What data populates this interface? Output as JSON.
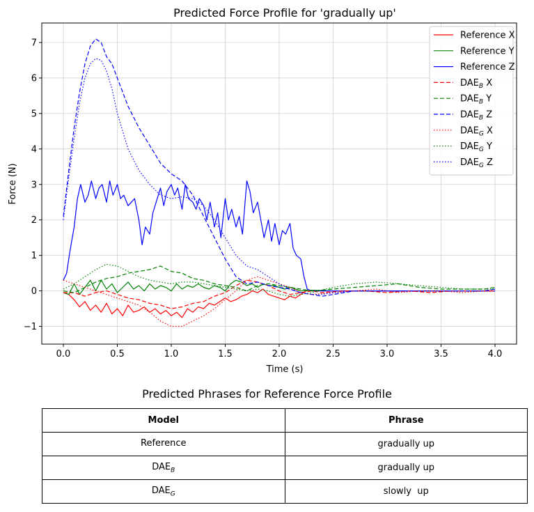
{
  "chart_data": {
    "type": "line",
    "title": "Predicted Force Profile for 'gradually up'",
    "xlabel": "Time (s)",
    "ylabel": "Force (N)",
    "xlim": [
      -0.2,
      4.2
    ],
    "ylim": [
      -1.5,
      7.55
    ],
    "xticks": [
      0.0,
      0.5,
      1.0,
      1.5,
      2.0,
      2.5,
      3.0,
      3.5,
      4.0
    ],
    "xtick_labels": [
      "0.0",
      "0.5",
      "1.0",
      "1.5",
      "2.0",
      "2.5",
      "3.0",
      "3.5",
      "4.0"
    ],
    "yticks": [
      -1,
      0,
      1,
      2,
      3,
      4,
      5,
      6,
      7
    ],
    "ytick_labels": [
      "−1",
      "0",
      "1",
      "2",
      "3",
      "4",
      "5",
      "6",
      "7"
    ],
    "grid": true,
    "legend_position": "top-right",
    "series": [
      {
        "name": "Reference X",
        "label_main": "Reference X",
        "label_sub": "",
        "label_rest": "",
        "color": "#ff0000",
        "dash": "solid",
        "x": [
          0.0,
          0.05,
          0.1,
          0.15,
          0.2,
          0.25,
          0.3,
          0.35,
          0.4,
          0.45,
          0.5,
          0.55,
          0.6,
          0.65,
          0.7,
          0.75,
          0.8,
          0.85,
          0.9,
          0.95,
          1.0,
          1.05,
          1.1,
          1.15,
          1.2,
          1.25,
          1.3,
          1.35,
          1.4,
          1.45,
          1.5,
          1.55,
          1.6,
          1.65,
          1.7,
          1.75,
          1.8,
          1.85,
          1.9,
          1.95,
          2.0,
          2.05,
          2.1,
          2.15,
          2.2,
          2.25,
          2.3,
          2.4,
          2.6,
          2.8,
          3.0,
          3.2,
          3.4,
          3.6,
          3.8,
          4.0
        ],
        "y": [
          -0.05,
          -0.1,
          -0.25,
          -0.45,
          -0.3,
          -0.55,
          -0.4,
          -0.6,
          -0.35,
          -0.65,
          -0.5,
          -0.7,
          -0.4,
          -0.6,
          -0.55,
          -0.45,
          -0.6,
          -0.5,
          -0.65,
          -0.55,
          -0.7,
          -0.6,
          -0.75,
          -0.5,
          -0.6,
          -0.45,
          -0.5,
          -0.35,
          -0.4,
          -0.3,
          -0.2,
          -0.3,
          -0.25,
          -0.15,
          -0.1,
          0.0,
          -0.05,
          0.05,
          -0.1,
          -0.15,
          -0.2,
          -0.25,
          -0.15,
          -0.2,
          -0.1,
          0.0,
          0.02,
          0.0,
          0.0,
          0.0,
          0.0,
          0.0,
          0.0,
          0.0,
          0.0,
          0.0
        ]
      },
      {
        "name": "Reference Y",
        "label_main": "Reference Y",
        "label_sub": "",
        "label_rest": "",
        "color": "#008000",
        "dash": "solid",
        "x": [
          0.0,
          0.05,
          0.1,
          0.15,
          0.2,
          0.25,
          0.3,
          0.35,
          0.4,
          0.45,
          0.5,
          0.55,
          0.6,
          0.65,
          0.7,
          0.75,
          0.8,
          0.85,
          0.9,
          0.95,
          1.0,
          1.05,
          1.1,
          1.15,
          1.2,
          1.25,
          1.3,
          1.35,
          1.4,
          1.45,
          1.5,
          1.55,
          1.6,
          1.65,
          1.7,
          1.75,
          1.8,
          1.85,
          1.9,
          1.95,
          2.0,
          2.05,
          2.1,
          2.15,
          2.2,
          2.3,
          2.5,
          2.7,
          2.9,
          3.1,
          3.3,
          3.5,
          3.7,
          3.9,
          4.0
        ],
        "y": [
          -0.05,
          -0.1,
          0.2,
          -0.1,
          0.1,
          0.3,
          0.0,
          0.3,
          0.05,
          0.2,
          -0.05,
          0.1,
          0.25,
          0.05,
          0.15,
          0.0,
          0.2,
          0.05,
          0.15,
          0.1,
          0.0,
          0.2,
          0.05,
          0.15,
          0.1,
          0.2,
          0.1,
          0.05,
          0.15,
          0.1,
          0.0,
          0.2,
          0.3,
          0.25,
          0.15,
          0.2,
          0.1,
          0.2,
          0.15,
          0.15,
          0.1,
          0.05,
          0.1,
          0.05,
          0.0,
          0.02,
          0.0,
          0.0,
          0.0,
          0.0,
          0.0,
          0.0,
          0.0,
          0.0,
          0.0
        ]
      },
      {
        "name": "Reference Z",
        "label_main": "Reference Z",
        "label_sub": "",
        "label_rest": "",
        "color": "#0000ff",
        "dash": "solid",
        "x": [
          0.0,
          0.03,
          0.06,
          0.1,
          0.13,
          0.16,
          0.2,
          0.23,
          0.26,
          0.3,
          0.33,
          0.36,
          0.4,
          0.43,
          0.46,
          0.5,
          0.53,
          0.56,
          0.6,
          0.63,
          0.66,
          0.7,
          0.73,
          0.76,
          0.8,
          0.83,
          0.86,
          0.9,
          0.93,
          0.96,
          1.0,
          1.03,
          1.06,
          1.1,
          1.13,
          1.16,
          1.2,
          1.23,
          1.26,
          1.3,
          1.33,
          1.36,
          1.4,
          1.43,
          1.46,
          1.5,
          1.53,
          1.56,
          1.6,
          1.63,
          1.66,
          1.7,
          1.73,
          1.76,
          1.8,
          1.83,
          1.86,
          1.9,
          1.93,
          1.96,
          2.0,
          2.03,
          2.06,
          2.1,
          2.13,
          2.16,
          2.2,
          2.23,
          2.26,
          2.3,
          2.5,
          2.7,
          2.9,
          3.1,
          3.3,
          3.5,
          3.7,
          3.9,
          4.0
        ],
        "y": [
          0.3,
          0.5,
          1.1,
          1.8,
          2.6,
          3.0,
          2.5,
          2.7,
          3.1,
          2.6,
          2.9,
          3.0,
          2.5,
          3.1,
          2.7,
          3.0,
          2.6,
          2.7,
          2.4,
          2.5,
          2.6,
          2.0,
          1.3,
          1.8,
          1.6,
          2.2,
          2.5,
          2.9,
          2.4,
          2.8,
          3.0,
          2.7,
          2.9,
          2.3,
          3.0,
          2.6,
          2.5,
          2.3,
          2.6,
          2.4,
          2.0,
          2.5,
          1.8,
          2.2,
          1.5,
          2.6,
          2.0,
          2.3,
          1.8,
          2.1,
          1.6,
          3.1,
          2.8,
          2.2,
          2.5,
          2.0,
          1.5,
          2.0,
          1.4,
          1.9,
          1.3,
          1.7,
          1.6,
          1.9,
          1.2,
          1.0,
          0.9,
          0.4,
          0.05,
          0.0,
          0.0,
          0.0,
          0.0,
          0.0,
          0.0,
          0.0,
          0.0,
          0.0,
          0.0
        ]
      },
      {
        "name": "DAE_B X",
        "label_main": "DAE",
        "label_sub": "B",
        "label_rest": " X",
        "color": "#ff0000",
        "dash": "6,3",
        "x": [
          0.0,
          0.1,
          0.2,
          0.3,
          0.4,
          0.5,
          0.6,
          0.7,
          0.8,
          0.9,
          1.0,
          1.1,
          1.2,
          1.3,
          1.4,
          1.5,
          1.6,
          1.7,
          1.8,
          1.9,
          2.0,
          2.1,
          2.2,
          2.3,
          2.4,
          2.6,
          2.8,
          3.0,
          3.2,
          3.4,
          3.6,
          3.8,
          4.0
        ],
        "y": [
          -0.05,
          -0.05,
          -0.15,
          -0.05,
          0.0,
          -0.1,
          -0.2,
          -0.25,
          -0.35,
          -0.4,
          -0.5,
          -0.45,
          -0.35,
          -0.3,
          -0.15,
          -0.05,
          0.15,
          0.3,
          0.25,
          0.15,
          0.0,
          -0.1,
          -0.05,
          0.0,
          -0.05,
          0.0,
          0.0,
          -0.05,
          0.0,
          -0.05,
          0.0,
          0.0,
          0.0
        ]
      },
      {
        "name": "DAE_B Y",
        "label_main": "DAE",
        "label_sub": "B",
        "label_rest": " Y",
        "color": "#008000",
        "dash": "6,3",
        "x": [
          0.0,
          0.1,
          0.2,
          0.3,
          0.4,
          0.5,
          0.6,
          0.7,
          0.8,
          0.9,
          1.0,
          1.1,
          1.2,
          1.3,
          1.4,
          1.5,
          1.6,
          1.7,
          1.8,
          1.9,
          2.0,
          2.1,
          2.2,
          2.3,
          2.5,
          2.7,
          2.9,
          3.1,
          3.3,
          3.5,
          3.7,
          3.9,
          4.0
        ],
        "y": [
          0.0,
          -0.05,
          0.1,
          0.25,
          0.35,
          0.4,
          0.5,
          0.55,
          0.6,
          0.7,
          0.55,
          0.5,
          0.35,
          0.3,
          0.2,
          0.15,
          0.1,
          0.0,
          0.15,
          0.2,
          0.15,
          0.1,
          0.05,
          0.0,
          0.05,
          0.1,
          0.15,
          0.2,
          0.1,
          0.05,
          0.05,
          0.05,
          0.1
        ]
      },
      {
        "name": "DAE_B Z",
        "label_main": "DAE",
        "label_sub": "B",
        "label_rest": " Z",
        "color": "#0000ff",
        "dash": "6,3",
        "x": [
          0.0,
          0.05,
          0.1,
          0.15,
          0.2,
          0.25,
          0.3,
          0.35,
          0.4,
          0.45,
          0.5,
          0.6,
          0.7,
          0.8,
          0.9,
          1.0,
          1.1,
          1.2,
          1.3,
          1.4,
          1.5,
          1.6,
          1.7,
          1.8,
          1.9,
          2.0,
          2.1,
          2.2,
          2.3,
          2.4,
          2.5,
          2.7,
          2.9,
          3.1,
          3.3,
          3.5,
          3.7,
          3.9,
          4.0
        ],
        "y": [
          2.1,
          3.4,
          4.6,
          5.6,
          6.4,
          6.9,
          7.1,
          7.0,
          6.6,
          6.4,
          6.0,
          5.2,
          4.6,
          4.1,
          3.6,
          3.3,
          3.1,
          2.7,
          2.1,
          1.5,
          0.9,
          0.4,
          0.2,
          0.25,
          0.15,
          0.1,
          0.05,
          -0.05,
          -0.1,
          -0.15,
          -0.1,
          0.0,
          0.0,
          0.0,
          0.0,
          0.0,
          0.0,
          0.0,
          0.05
        ]
      },
      {
        "name": "DAE_G X",
        "label_main": "DAE",
        "label_sub": "G",
        "label_rest": " X",
        "color": "#ff0000",
        "dash": "1.5,2.5",
        "x": [
          0.0,
          0.1,
          0.2,
          0.3,
          0.4,
          0.5,
          0.6,
          0.7,
          0.8,
          0.9,
          1.0,
          1.1,
          1.2,
          1.3,
          1.4,
          1.5,
          1.6,
          1.7,
          1.8,
          1.9,
          2.0,
          2.1,
          2.2,
          2.3,
          2.5,
          2.7,
          2.9,
          3.1,
          3.3,
          3.5,
          3.7,
          3.9,
          4.0
        ],
        "y": [
          0.3,
          0.2,
          0.1,
          0.0,
          -0.1,
          -0.2,
          -0.3,
          -0.4,
          -0.6,
          -0.85,
          -1.0,
          -1.0,
          -0.85,
          -0.7,
          -0.5,
          -0.25,
          0.0,
          0.3,
          0.4,
          0.3,
          0.2,
          0.1,
          -0.05,
          -0.1,
          -0.05,
          0.0,
          0.05,
          -0.05,
          0.0,
          0.0,
          -0.05,
          0.0,
          0.0
        ]
      },
      {
        "name": "DAE_G Y",
        "label_main": "DAE",
        "label_sub": "G",
        "label_rest": " Y",
        "color": "#008000",
        "dash": "1.5,2.5",
        "x": [
          0.0,
          0.1,
          0.2,
          0.3,
          0.4,
          0.5,
          0.6,
          0.7,
          0.8,
          0.9,
          1.0,
          1.1,
          1.2,
          1.3,
          1.4,
          1.5,
          1.6,
          1.7,
          1.8,
          1.9,
          2.0,
          2.1,
          2.2,
          2.3,
          2.5,
          2.7,
          2.9,
          3.1,
          3.3,
          3.5,
          3.7,
          3.9,
          4.0
        ],
        "y": [
          0.05,
          0.2,
          0.4,
          0.6,
          0.75,
          0.7,
          0.55,
          0.4,
          0.3,
          0.25,
          0.2,
          0.25,
          0.25,
          0.2,
          0.15,
          0.1,
          0.05,
          0.0,
          0.05,
          0.0,
          -0.1,
          -0.15,
          -0.1,
          -0.05,
          0.1,
          0.2,
          0.25,
          0.2,
          0.15,
          0.1,
          0.05,
          0.05,
          0.05
        ]
      },
      {
        "name": "DAE_G Z",
        "label_main": "DAE",
        "label_sub": "G",
        "label_rest": " Z",
        "color": "#0000ff",
        "dash": "1.5,2.5",
        "x": [
          0.0,
          0.05,
          0.1,
          0.15,
          0.2,
          0.25,
          0.3,
          0.35,
          0.4,
          0.45,
          0.5,
          0.6,
          0.7,
          0.8,
          0.9,
          1.0,
          1.1,
          1.2,
          1.3,
          1.4,
          1.5,
          1.6,
          1.7,
          1.8,
          1.9,
          2.0,
          2.1,
          2.2,
          2.3,
          2.4,
          2.5,
          2.7,
          2.9,
          3.1,
          3.3,
          3.5,
          3.7,
          3.9,
          4.0
        ],
        "y": [
          2.0,
          3.2,
          4.3,
          5.3,
          6.0,
          6.4,
          6.55,
          6.5,
          6.2,
          5.7,
          5.0,
          4.0,
          3.4,
          3.0,
          2.7,
          2.6,
          2.65,
          2.6,
          2.4,
          2.0,
          1.5,
          1.0,
          0.7,
          0.6,
          0.4,
          0.2,
          0.05,
          -0.05,
          -0.1,
          -0.1,
          -0.05,
          0.0,
          0.0,
          0.0,
          0.0,
          0.0,
          0.0,
          0.0,
          0.05
        ]
      }
    ]
  },
  "table": {
    "title": "Predicted Phrases for Reference Force Profile",
    "header": {
      "model": "Model",
      "phrase": "Phrase"
    },
    "rows": [
      {
        "model_main": "Reference",
        "model_sub": "",
        "phrase": "gradually up"
      },
      {
        "model_main": "DAE",
        "model_sub": "B",
        "phrase": "gradually up"
      },
      {
        "model_main": "DAE",
        "model_sub": "G",
        "phrase": "slowly  up"
      }
    ]
  }
}
